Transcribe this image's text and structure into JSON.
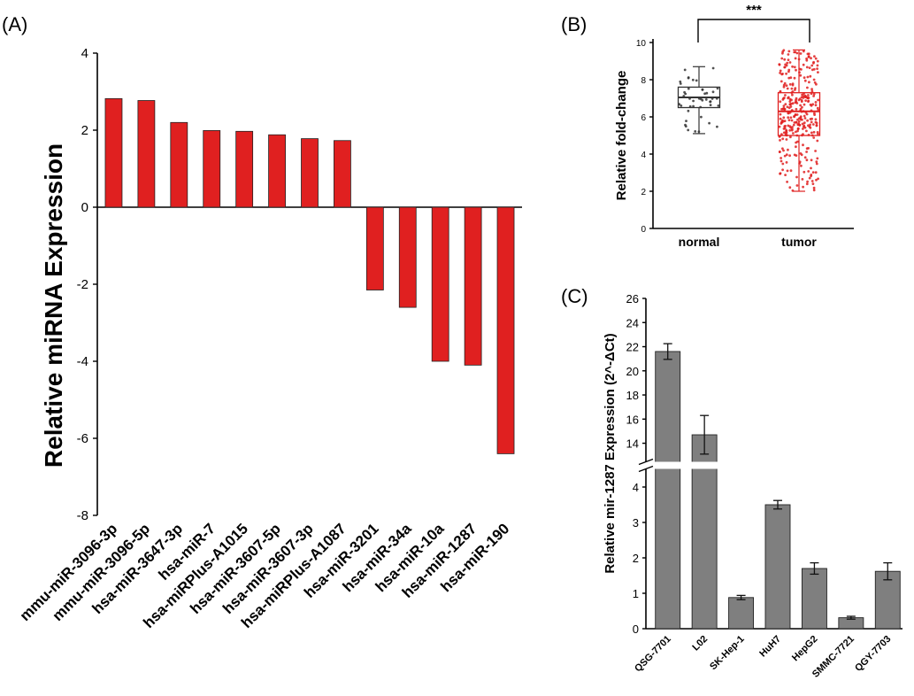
{
  "chart_data": [
    {
      "panel_label": "(A)",
      "type": "bar",
      "ylabel": "Relative miRNA Expression",
      "ylim": [
        -8,
        4
      ],
      "yticks": [
        "4",
        "2",
        "0",
        "-2",
        "-4",
        "-6",
        "-8"
      ],
      "categories": [
        "mmu-miR-3096-3p",
        "mmu-miR-3096-5p",
        "hsa-miR-3647-3p",
        "hsa-miR-7",
        "hsa-miRPlus-A1015",
        "hsa-miR-3607-5p",
        "hsa-miR-3607-3p",
        "hsa-miRPlus-A1087",
        "hsa-miR-3201",
        "hsa-miR-34a",
        "hsa-miR-10a",
        "hsa-miR-1287",
        "hsa-miR-190"
      ],
      "values": [
        2.82,
        2.77,
        2.2,
        1.99,
        1.97,
        1.88,
        1.78,
        1.73,
        -2.15,
        -2.6,
        -4.0,
        -4.1,
        -6.4
      ],
      "color": "#e02020"
    },
    {
      "panel_label": "(B)",
      "type": "box",
      "ylabel": "Relative fold-change",
      "ylim": [
        0,
        10
      ],
      "yticks": [
        "0",
        "2",
        "4",
        "6",
        "8",
        "10"
      ],
      "categories": [
        "normal",
        "tumor"
      ],
      "significance": "***",
      "boxes": [
        {
          "name": "normal",
          "min": 5.1,
          "q1": 6.5,
          "median": 7.05,
          "q3": 7.6,
          "max": 8.7,
          "color": "#333333"
        },
        {
          "name": "tumor",
          "min": 2.0,
          "q1": 5.0,
          "median": 6.3,
          "q3": 7.3,
          "max": 9.6,
          "color": "#e02020"
        }
      ]
    },
    {
      "panel_label": "(C)",
      "type": "bar",
      "ylabel": "Relative mir-1287 Expression (2^-ΔCt)",
      "axis_break": [
        4.5,
        12.5
      ],
      "yticks_lower": [
        "0",
        "1",
        "2",
        "3",
        "4"
      ],
      "yticks_upper": [
        "14",
        "16",
        "18",
        "20",
        "22",
        "24",
        "26"
      ],
      "categories": [
        "QSG-7701",
        "L02",
        "SK-Hep-1",
        "HuH7",
        "HepG2",
        "SMMC-7721",
        "QGY-7703"
      ],
      "values": [
        21.6,
        14.7,
        0.88,
        3.5,
        1.7,
        0.31,
        1.62
      ],
      "errors": [
        0.65,
        1.6,
        0.06,
        0.12,
        0.16,
        0.04,
        0.24
      ],
      "color": "#7f7f7f"
    }
  ]
}
